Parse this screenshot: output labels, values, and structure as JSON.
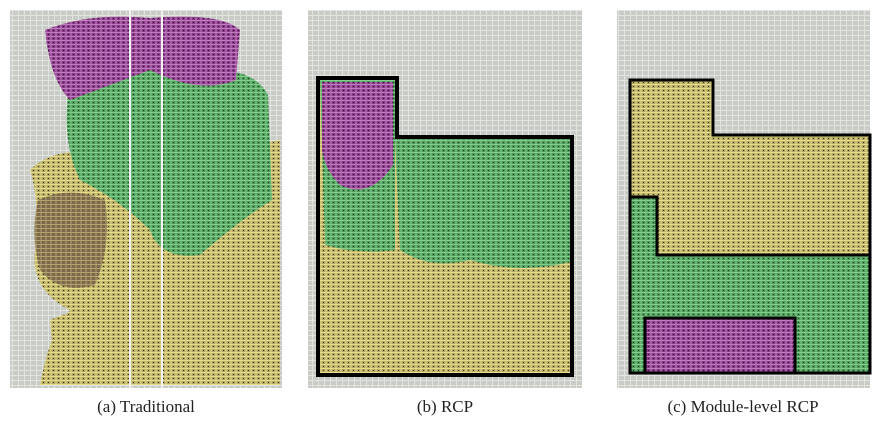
{
  "figure": {
    "panels": [
      {
        "caption": "(a) Traditional"
      },
      {
        "caption": "(b) RCP"
      },
      {
        "caption": "(c) Module-level RCP"
      }
    ]
  }
}
